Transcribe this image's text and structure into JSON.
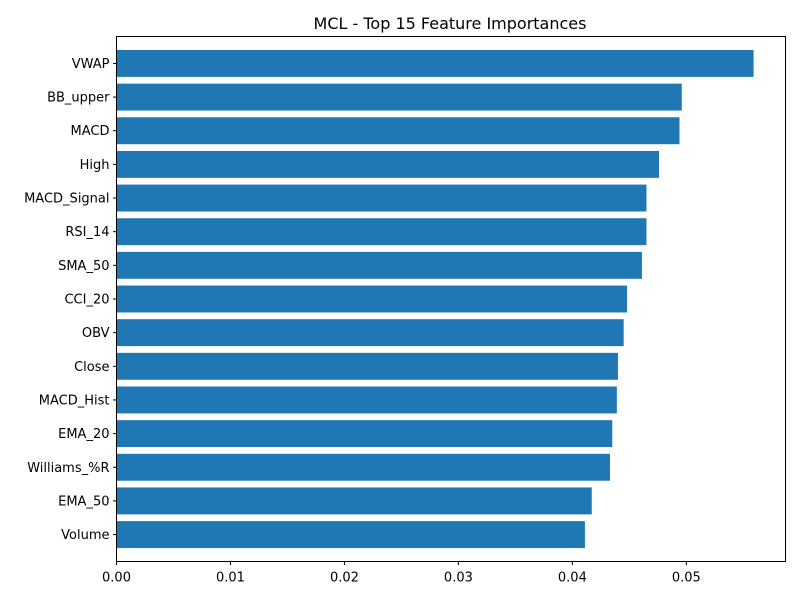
{
  "chart_data": {
    "type": "bar",
    "orientation": "horizontal",
    "title": "MCL - Top 15 Feature Importances",
    "xlabel": "",
    "ylabel": "",
    "categories": [
      "VWAP",
      "BB_upper",
      "MACD",
      "High",
      "MACD_Signal",
      "RSI_14",
      "SMA_50",
      "CCI_20",
      "OBV",
      "Close",
      "MACD_Hist",
      "EMA_20",
      "Williams_%R",
      "EMA_50",
      "Volume"
    ],
    "values": [
      0.0559,
      0.0496,
      0.0494,
      0.0476,
      0.0465,
      0.0465,
      0.0461,
      0.0448,
      0.0445,
      0.044,
      0.0439,
      0.0435,
      0.0433,
      0.0417,
      0.0411
    ],
    "xlim": [
      0,
      0.0587
    ],
    "xticks": [
      "0.00",
      "0.01",
      "0.02",
      "0.03",
      "0.04",
      "0.05"
    ],
    "xtick_values": [
      0,
      0.01,
      0.02,
      0.03,
      0.04,
      0.05
    ],
    "grid": false,
    "bar_color": "#1f77b4"
  }
}
